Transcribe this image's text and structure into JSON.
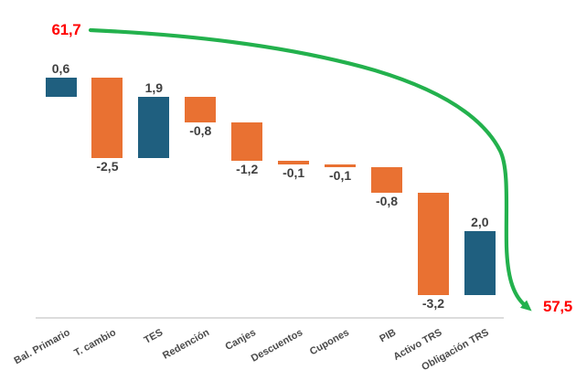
{
  "chart_data": {
    "type": "waterfall",
    "title": "",
    "xlabel": "",
    "ylabel": "",
    "gridlines": false,
    "legend": "none",
    "start": {
      "label": "61,7",
      "value": 61.7
    },
    "end": {
      "label": "57,5",
      "value": 57.5
    },
    "categories": [
      "Bal. Primario",
      "T. cambio",
      "TES",
      "Redención",
      "Canjes",
      "Descuentos",
      "Cupones",
      "PIB",
      "Activo TRS",
      "Obligación TRS"
    ],
    "values": [
      0.6,
      -2.5,
      1.9,
      -0.8,
      -1.2,
      -0.1,
      -0.1,
      -0.8,
      -3.2,
      2.0
    ],
    "value_labels": [
      "0,6",
      "-2,5",
      "1,9",
      "-0,8",
      "-1,2",
      "-0,1",
      "-0,1",
      "-0,8",
      "-3,2",
      "2,0"
    ],
    "colors": {
      "increase_bar": "#1F5F7F",
      "decrease_bar": "#E97132",
      "trend_arrow": "#23B14D",
      "endpoint_text": "#FF0000",
      "value_text": "#404040",
      "category_text": "#4A4A4A",
      "axis_line": "#DCDCDC",
      "background": "#FFFFFF"
    }
  }
}
